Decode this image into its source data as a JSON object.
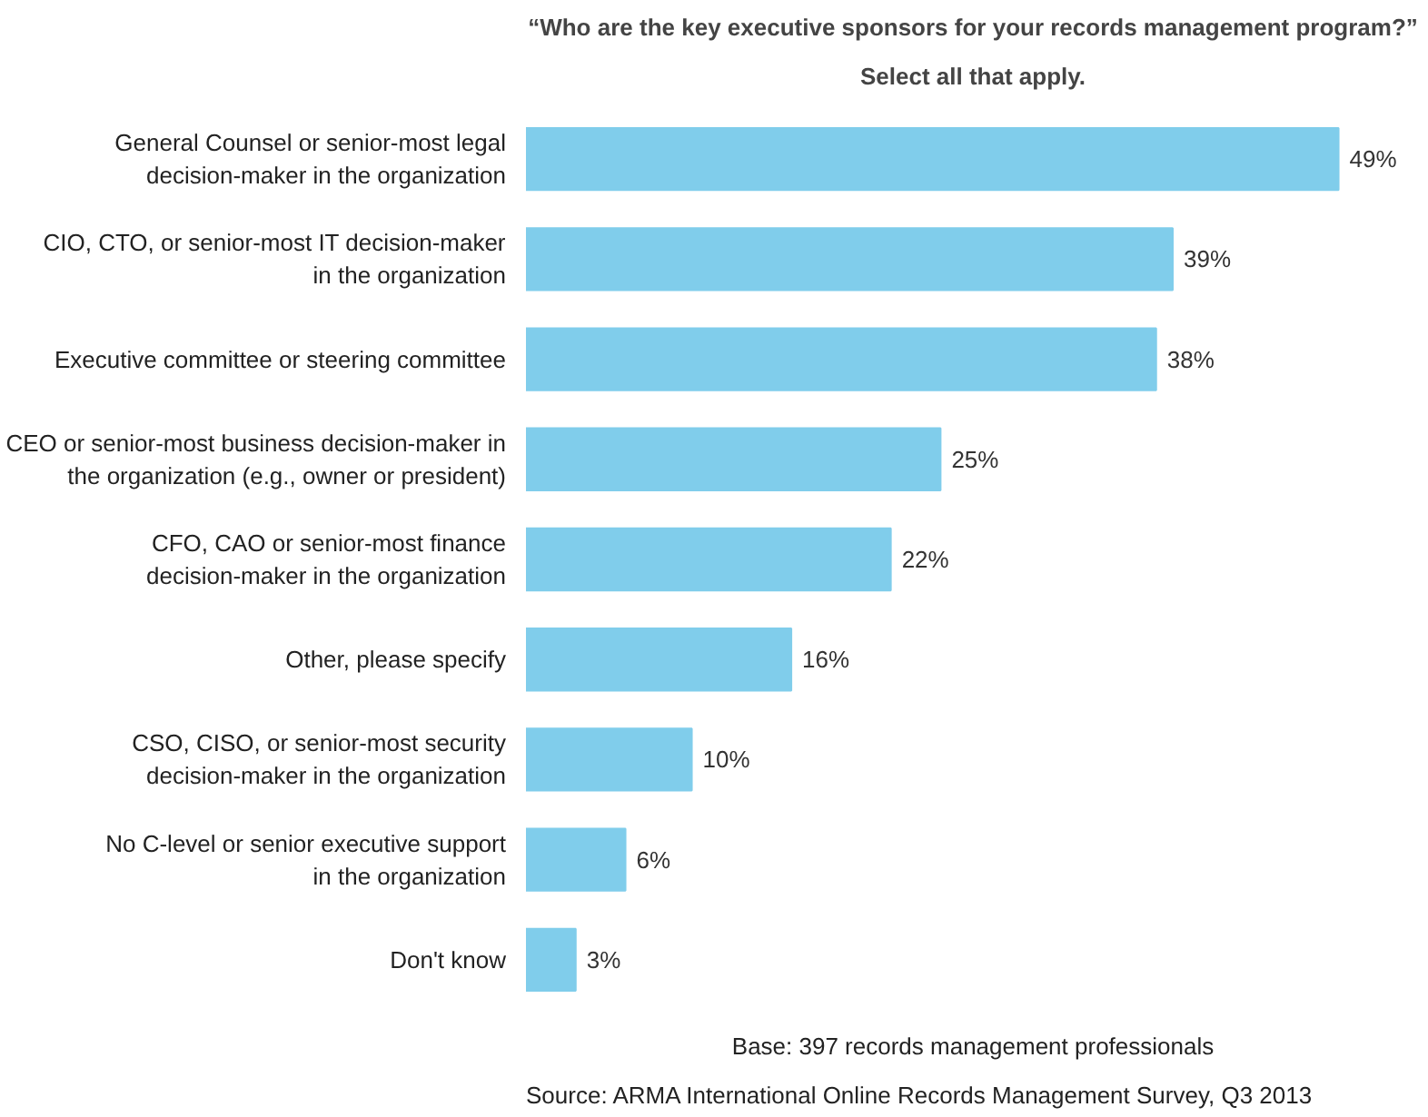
{
  "chart_data": {
    "type": "bar",
    "orientation": "horizontal",
    "title": "“Who are the key executive sponsors for your records management program?”",
    "subtitle": "Select all that apply.",
    "categories": [
      "General Counsel or senior-most legal\ndecision-maker in the organization",
      "CIO, CTO, or senior-most IT decision-maker\nin the organization",
      "Executive committee or steering committee",
      "CEO or senior-most business decision-maker in\nthe organization (e.g., owner or president)",
      "CFO, CAO or senior-most finance\ndecision-maker in the organization",
      "Other, please specify",
      "CSO, CISO, or senior-most security\ndecision-maker in the organization",
      "No C-level or senior executive support\nin the organization",
      "Don't know"
    ],
    "values": [
      49,
      39,
      38,
      25,
      22,
      16,
      10,
      6,
      3
    ],
    "value_labels": [
      "49%",
      "39%",
      "38%",
      "25%",
      "22%",
      "16%",
      "10%",
      "6%",
      "3%"
    ],
    "color": "#80cdeb",
    "annotations": [
      "Base: 397 records management professionals",
      "Source: ARMA International Online Records Management Survey, Q3 2013"
    ]
  }
}
